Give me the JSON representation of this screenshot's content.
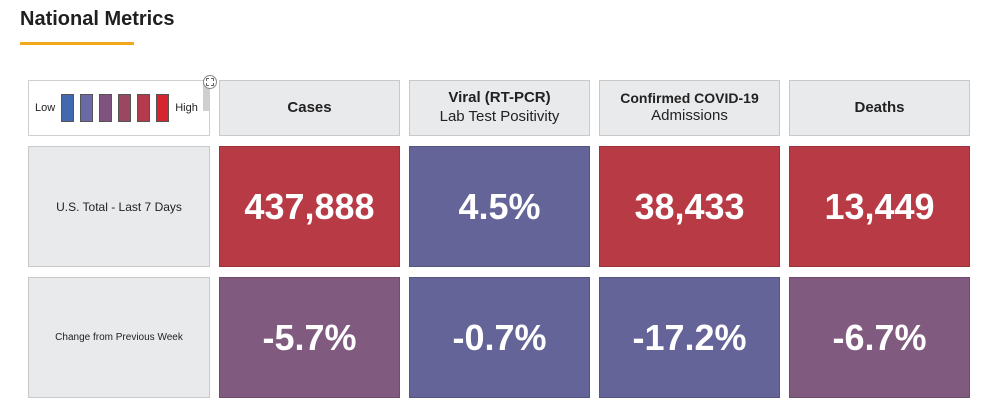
{
  "title": "National Metrics",
  "legend": {
    "low_label": "Low",
    "high_label": "High",
    "swatches": [
      "#4268b0",
      "#6b6aa7",
      "#80527e",
      "#9a4762",
      "#b53a4c",
      "#d4262c"
    ]
  },
  "columns": [
    {
      "line1": "Cases",
      "line2": ""
    },
    {
      "line1": "Viral (RT-PCR)",
      "line2": "Lab Test Positivity"
    },
    {
      "line1": "Confirmed COVID-19",
      "line2": "Admissions"
    },
    {
      "line1": "Deaths",
      "line2": ""
    }
  ],
  "rows": [
    {
      "label": "U.S. Total - Last 7 Days",
      "cells": [
        {
          "value": "437,888",
          "color": "#b83a45"
        },
        {
          "value": "4.5%",
          "color": "#646498"
        },
        {
          "value": "38,433",
          "color": "#b83a45"
        },
        {
          "value": "13,449",
          "color": "#b83a45"
        }
      ]
    },
    {
      "label": "Change from Previous Week",
      "cells": [
        {
          "value": "-5.7%",
          "color": "#805a7f"
        },
        {
          "value": "-0.7%",
          "color": "#646498"
        },
        {
          "value": "-17.2%",
          "color": "#646498"
        },
        {
          "value": "-6.7%",
          "color": "#805a7f"
        }
      ]
    }
  ]
}
